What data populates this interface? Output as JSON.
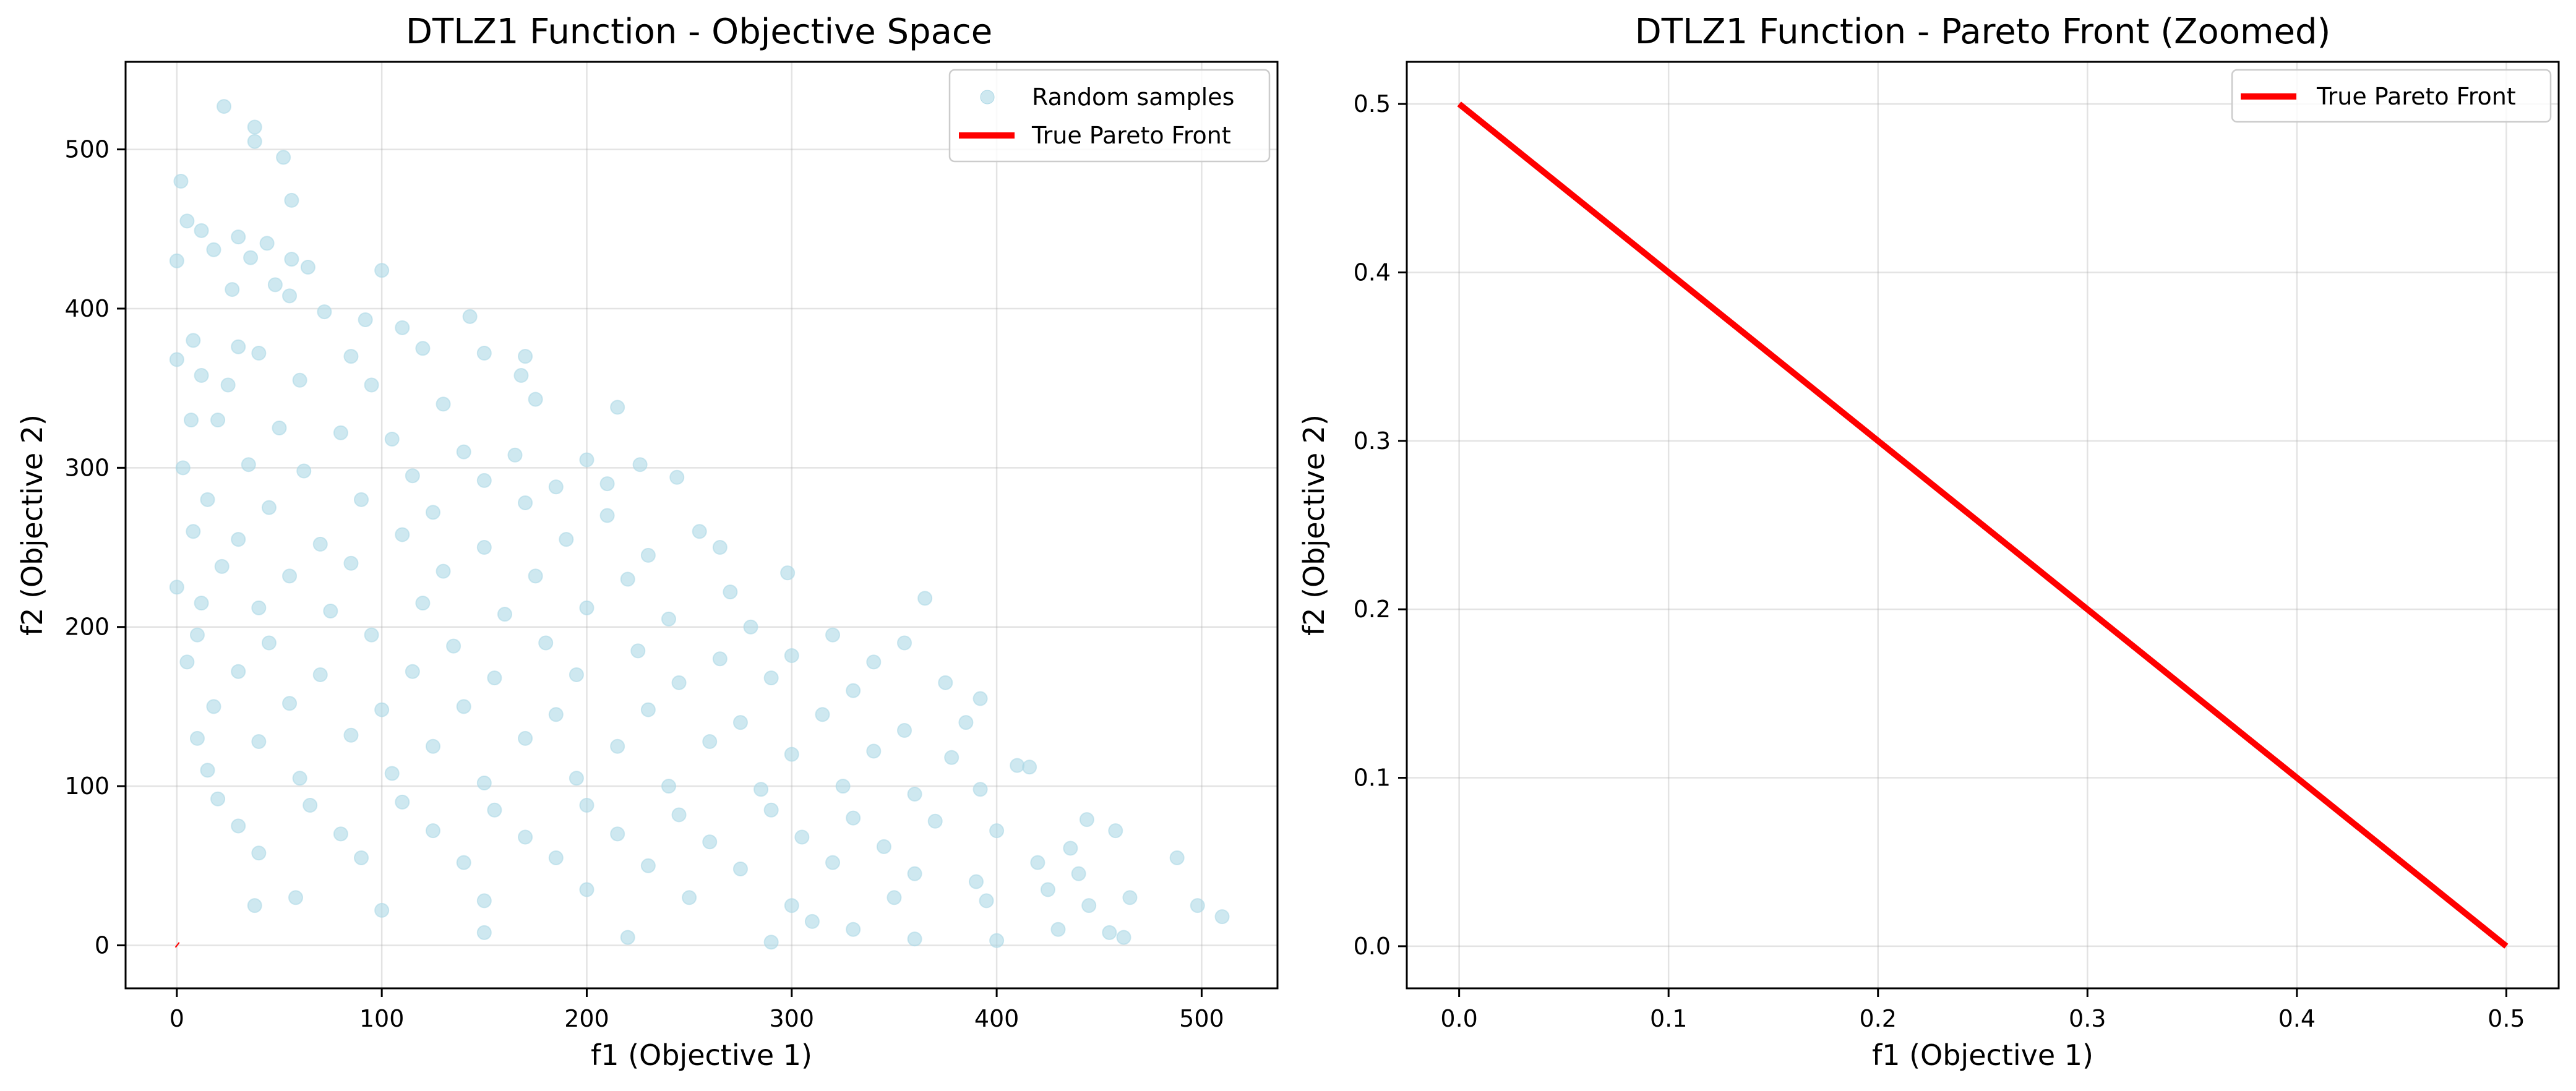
{
  "colors": {
    "scatter": "#add8e6",
    "pareto": "#ff0000",
    "grid": "#b0b0b0",
    "background": "#ffffff"
  },
  "chart_data": [
    {
      "type": "scatter",
      "title": "DTLZ1 Function - Objective Space",
      "xlabel": "f1 (Objective 1)",
      "ylabel": "f2 (Objective 2)",
      "xlim": [
        -25,
        537
      ],
      "ylim": [
        -27,
        555
      ],
      "xticks": [
        0,
        100,
        200,
        300,
        400,
        500
      ],
      "yticks": [
        0,
        100,
        200,
        300,
        400,
        500
      ],
      "grid": true,
      "legend_position": "top-right",
      "series": [
        {
          "name": "Random samples",
          "kind": "scatter",
          "color": "#add8e6",
          "alpha": 0.6,
          "points": [
            [
              23,
              527
            ],
            [
              38,
              514
            ],
            [
              38,
              505
            ],
            [
              52,
              495
            ],
            [
              2,
              480
            ],
            [
              56,
              468
            ],
            [
              5,
              455
            ],
            [
              12,
              449
            ],
            [
              30,
              445
            ],
            [
              44,
              441
            ],
            [
              36,
              432
            ],
            [
              56,
              431
            ],
            [
              64,
              426
            ],
            [
              100,
              424
            ],
            [
              0,
              430
            ],
            [
              18,
              437
            ],
            [
              27,
              412
            ],
            [
              48,
              415
            ],
            [
              55,
              408
            ],
            [
              72,
              398
            ],
            [
              92,
              393
            ],
            [
              110,
              388
            ],
            [
              143,
              395
            ],
            [
              0,
              368
            ],
            [
              8,
              380
            ],
            [
              30,
              376
            ],
            [
              40,
              372
            ],
            [
              85,
              370
            ],
            [
              120,
              375
            ],
            [
              150,
              372
            ],
            [
              170,
              370
            ],
            [
              168,
              358
            ],
            [
              12,
              358
            ],
            [
              25,
              352
            ],
            [
              60,
              355
            ],
            [
              95,
              352
            ],
            [
              130,
              340
            ],
            [
              175,
              343
            ],
            [
              215,
              338
            ],
            [
              7,
              330
            ],
            [
              20,
              330
            ],
            [
              50,
              325
            ],
            [
              80,
              322
            ],
            [
              105,
              318
            ],
            [
              140,
              310
            ],
            [
              165,
              308
            ],
            [
              200,
              305
            ],
            [
              226,
              302
            ],
            [
              244,
              294
            ],
            [
              3,
              300
            ],
            [
              35,
              302
            ],
            [
              62,
              298
            ],
            [
              115,
              295
            ],
            [
              150,
              292
            ],
            [
              185,
              288
            ],
            [
              210,
              290
            ],
            [
              15,
              280
            ],
            [
              45,
              275
            ],
            [
              90,
              280
            ],
            [
              125,
              272
            ],
            [
              170,
              278
            ],
            [
              210,
              270
            ],
            [
              255,
              260
            ],
            [
              8,
              260
            ],
            [
              30,
              255
            ],
            [
              70,
              252
            ],
            [
              110,
              258
            ],
            [
              150,
              250
            ],
            [
              190,
              255
            ],
            [
              230,
              245
            ],
            [
              265,
              250
            ],
            [
              22,
              238
            ],
            [
              55,
              232
            ],
            [
              85,
              240
            ],
            [
              130,
              235
            ],
            [
              175,
              232
            ],
            [
              220,
              230
            ],
            [
              270,
              222
            ],
            [
              298,
              234
            ],
            [
              365,
              218
            ],
            [
              0,
              225
            ],
            [
              12,
              215
            ],
            [
              40,
              212
            ],
            [
              75,
              210
            ],
            [
              120,
              215
            ],
            [
              160,
              208
            ],
            [
              200,
              212
            ],
            [
              240,
              205
            ],
            [
              280,
              200
            ],
            [
              320,
              195
            ],
            [
              355,
              190
            ],
            [
              10,
              195
            ],
            [
              45,
              190
            ],
            [
              95,
              195
            ],
            [
              135,
              188
            ],
            [
              180,
              190
            ],
            [
              225,
              185
            ],
            [
              265,
              180
            ],
            [
              300,
              182
            ],
            [
              340,
              178
            ],
            [
              5,
              178
            ],
            [
              30,
              172
            ],
            [
              70,
              170
            ],
            [
              115,
              172
            ],
            [
              155,
              168
            ],
            [
              195,
              170
            ],
            [
              245,
              165
            ],
            [
              290,
              168
            ],
            [
              330,
              160
            ],
            [
              375,
              165
            ],
            [
              392,
              155
            ],
            [
              18,
              150
            ],
            [
              55,
              152
            ],
            [
              100,
              148
            ],
            [
              140,
              150
            ],
            [
              185,
              145
            ],
            [
              230,
              148
            ],
            [
              275,
              140
            ],
            [
              315,
              145
            ],
            [
              355,
              135
            ],
            [
              385,
              140
            ],
            [
              10,
              130
            ],
            [
              40,
              128
            ],
            [
              85,
              132
            ],
            [
              125,
              125
            ],
            [
              170,
              130
            ],
            [
              215,
              125
            ],
            [
              260,
              128
            ],
            [
              300,
              120
            ],
            [
              340,
              122
            ],
            [
              378,
              118
            ],
            [
              410,
              113
            ],
            [
              416,
              112
            ],
            [
              15,
              110
            ],
            [
              60,
              105
            ],
            [
              105,
              108
            ],
            [
              150,
              102
            ],
            [
              195,
              105
            ],
            [
              240,
              100
            ],
            [
              285,
              98
            ],
            [
              325,
              100
            ],
            [
              360,
              95
            ],
            [
              392,
              98
            ],
            [
              20,
              92
            ],
            [
              65,
              88
            ],
            [
              110,
              90
            ],
            [
              155,
              85
            ],
            [
              200,
              88
            ],
            [
              245,
              82
            ],
            [
              290,
              85
            ],
            [
              330,
              80
            ],
            [
              370,
              78
            ],
            [
              444,
              79
            ],
            [
              458,
              72
            ],
            [
              30,
              75
            ],
            [
              80,
              70
            ],
            [
              125,
              72
            ],
            [
              170,
              68
            ],
            [
              215,
              70
            ],
            [
              260,
              65
            ],
            [
              305,
              68
            ],
            [
              345,
              62
            ],
            [
              400,
              72
            ],
            [
              436,
              61
            ],
            [
              420,
              52
            ],
            [
              488,
              55
            ],
            [
              40,
              58
            ],
            [
              90,
              55
            ],
            [
              140,
              52
            ],
            [
              185,
              55
            ],
            [
              230,
              50
            ],
            [
              275,
              48
            ],
            [
              320,
              52
            ],
            [
              360,
              45
            ],
            [
              390,
              40
            ],
            [
              440,
              45
            ],
            [
              38,
              25
            ],
            [
              58,
              30
            ],
            [
              100,
              22
            ],
            [
              150,
              28
            ],
            [
              200,
              35
            ],
            [
              250,
              30
            ],
            [
              300,
              25
            ],
            [
              350,
              30
            ],
            [
              395,
              28
            ],
            [
              425,
              35
            ],
            [
              445,
              25
            ],
            [
              465,
              30
            ],
            [
              498,
              25
            ],
            [
              510,
              18
            ],
            [
              430,
              10
            ],
            [
              455,
              8
            ],
            [
              462,
              5
            ],
            [
              150,
              8
            ],
            [
              220,
              5
            ],
            [
              290,
              2
            ],
            [
              330,
              10
            ],
            [
              360,
              4
            ],
            [
              400,
              3
            ],
            [
              310,
              15
            ]
          ]
        },
        {
          "name": "True Pareto Front",
          "kind": "line",
          "color": "#ff0000",
          "x": [
            0,
            0.5
          ],
          "y": [
            0.5,
            0
          ]
        }
      ]
    },
    {
      "type": "line",
      "title": "DTLZ1 Function - Pareto Front (Zoomed)",
      "xlabel": "f1 (Objective 1)",
      "ylabel": "f2 (Objective 2)",
      "xlim": [
        -0.025,
        0.525
      ],
      "ylim": [
        -0.025,
        0.525
      ],
      "xticks": [
        0.0,
        0.1,
        0.2,
        0.3,
        0.4,
        0.5
      ],
      "yticks": [
        0.0,
        0.1,
        0.2,
        0.3,
        0.4,
        0.5
      ],
      "xtick_labels": [
        "0.0",
        "0.1",
        "0.2",
        "0.3",
        "0.4",
        "0.5"
      ],
      "ytick_labels": [
        "0.0",
        "0.1",
        "0.2",
        "0.3",
        "0.4",
        "0.5"
      ],
      "grid": true,
      "legend_position": "top-right",
      "series": [
        {
          "name": "True Pareto Front",
          "kind": "line",
          "color": "#ff0000",
          "x": [
            0,
            0.5
          ],
          "y": [
            0.5,
            0
          ]
        }
      ]
    }
  ]
}
